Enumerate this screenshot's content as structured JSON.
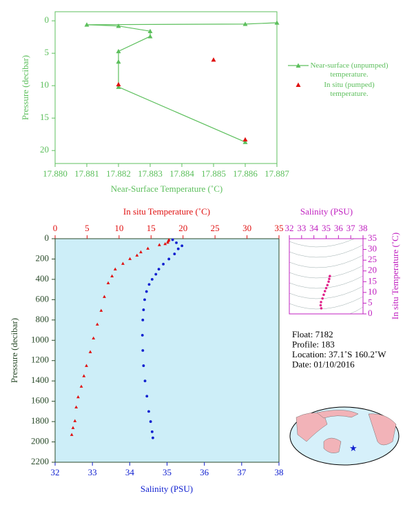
{
  "chart_data": [
    {
      "type": "scatter",
      "x_label": "Near-Surface Temperature (˚C)",
      "y_label": "Pressure (decibar)",
      "xlim": [
        17.88,
        17.887
      ],
      "xticks": [
        {
          "value": 17.88,
          "label": "17.880"
        },
        {
          "value": 17.881,
          "label": "17.881"
        },
        {
          "value": 17.882,
          "label": "17.882"
        },
        {
          "value": 17.883,
          "label": "17.883"
        },
        {
          "value": 17.884,
          "label": "17.884"
        },
        {
          "value": 17.885,
          "label": "17.885"
        },
        {
          "value": 17.886,
          "label": "17.886"
        },
        {
          "value": 17.887,
          "label": "17.887"
        }
      ],
      "ylim": [
        -1.4,
        22
      ],
      "y_inverted": true,
      "yticks": [
        0,
        5,
        10,
        15,
        20
      ],
      "legend": "right",
      "series": [
        {
          "name": "Near-surface (unpumped) temperature.",
          "color": "#5cbf5c",
          "marker": "triangle",
          "line": true,
          "x": [
            17.887,
            17.886,
            17.881,
            17.882,
            17.883,
            17.883,
            17.882,
            17.882,
            17.882,
            17.886
          ],
          "values": [
            0.3,
            0.5,
            0.6,
            0.8,
            1.6,
            2.4,
            4.7,
            6.3,
            10.2,
            18.7
          ]
        },
        {
          "name": "In situ (pumped) temperature.",
          "color": "#e01010",
          "marker": "triangle",
          "line": false,
          "x": [
            17.885,
            17.882,
            17.886
          ],
          "values": [
            6.0,
            9.8,
            18.3
          ]
        }
      ]
    },
    {
      "type": "scatter",
      "x_label": "Salinity (PSU)",
      "x2_label": "In situ Temperature (˚C)",
      "y_label": "Pressure (decibar)",
      "xlim": [
        32,
        38
      ],
      "xticks": [
        32,
        33,
        34,
        35,
        36,
        37,
        38
      ],
      "x2lim": [
        0,
        35
      ],
      "x2ticks": [
        0,
        5,
        10,
        15,
        20,
        25,
        30,
        35
      ],
      "ylim": [
        0,
        2200
      ],
      "y_inverted": true,
      "yticks": [
        0,
        200,
        400,
        600,
        800,
        1000,
        1200,
        1400,
        1600,
        1800,
        2000,
        2200
      ],
      "background": "#cdeef8",
      "series": [
        {
          "color": "#e01010",
          "marker": "triangle",
          "axis": "x2",
          "x": [
            17.8,
            17.7,
            17.6,
            17.2,
            16.3,
            14.5,
            13.4,
            12.8,
            11.7,
            10.6,
            9.4,
            8.9,
            8.3,
            7.7,
            7.2,
            6.6,
            6.0,
            5.5,
            4.9,
            4.5,
            4.1,
            3.6,
            3.3,
            3.1,
            2.8,
            2.6
          ],
          "values": [
            10,
            20,
            35,
            50,
            60,
            95,
            130,
            163,
            197,
            244,
            299,
            367,
            435,
            570,
            706,
            842,
            978,
            1113,
            1249,
            1350,
            1453,
            1557,
            1657,
            1792,
            1860,
            1928
          ]
        },
        {
          "color": "#1020d0",
          "marker": "circle",
          "x": [
            35.15,
            35.25,
            35.4,
            35.3,
            35.2,
            35.05,
            34.9,
            34.78,
            34.7,
            34.6,
            34.52,
            34.45,
            34.4,
            34.37,
            34.35,
            34.34,
            34.35,
            34.37,
            34.41,
            34.46,
            34.51,
            34.56,
            34.6,
            34.62
          ],
          "values": [
            10,
            40,
            70,
            100,
            150,
            200,
            250,
            300,
            350,
            400,
            450,
            520,
            600,
            700,
            800,
            950,
            1100,
            1250,
            1400,
            1550,
            1700,
            1800,
            1900,
            1960
          ]
        }
      ]
    },
    {
      "type": "scatter",
      "x_label": "Salinity (PSU)",
      "y_label": "In situ Temperature (˚C)",
      "xlim": [
        32,
        38
      ],
      "xticks": [
        32,
        33,
        34,
        35,
        36,
        37,
        38
      ],
      "ylim": [
        0,
        35
      ],
      "yticks": [
        0,
        5,
        10,
        15,
        20,
        25,
        30,
        35
      ],
      "series": [
        {
          "color": "#e0208a",
          "marker": "circle",
          "x": [
            34.6,
            34.55,
            34.58,
            34.7,
            34.8,
            34.9,
            35.0,
            35.1,
            35.2,
            35.25,
            35.3
          ],
          "values": [
            2.6,
            4,
            5.5,
            7.2,
            8.9,
            10.6,
            12,
            13.4,
            15,
            16.3,
            17.6
          ]
        }
      ]
    }
  ],
  "info": [
    "Float:  7182",
    "Profile:  183",
    "Location:  37.1˚S  160.2˚W",
    "Date:  01/10/2016"
  ]
}
